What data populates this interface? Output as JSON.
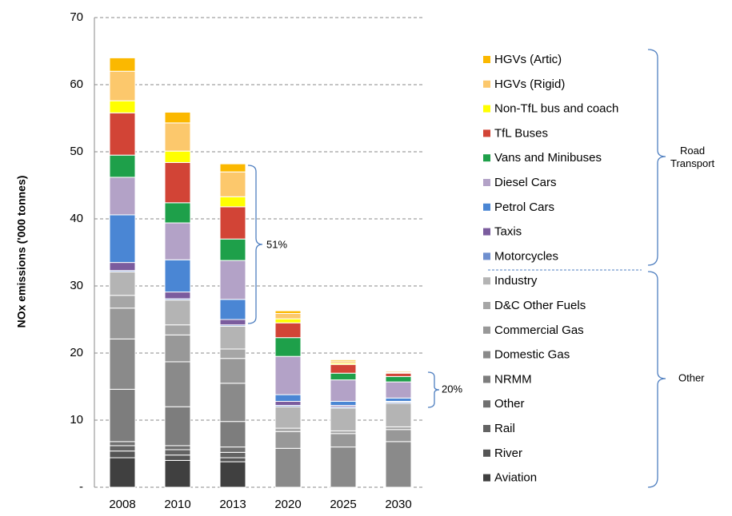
{
  "chart_data": {
    "type": "stacked_bar",
    "y_label": "NOx emissions ('000 tonnes)",
    "categories": [
      "2008",
      "2010",
      "2013",
      "2020",
      "2025",
      "2030"
    ],
    "ylim": [
      0,
      70
    ],
    "yticks": [
      {
        "value": 0,
        "label": "-"
      },
      10,
      20,
      30,
      40,
      50,
      60,
      70
    ],
    "grid": true,
    "series": [
      {
        "name": "Aviation",
        "color": "#404040",
        "values": [
          4.4,
          4.0,
          3.8,
          0,
          0,
          0
        ]
      },
      {
        "name": "River",
        "color": "#555555",
        "values": [
          1.0,
          0.8,
          0.6,
          0,
          0,
          0
        ]
      },
      {
        "name": "Rail",
        "color": "#636363",
        "values": [
          0.8,
          0.8,
          0.8,
          0,
          0,
          0
        ]
      },
      {
        "name": "Other",
        "color": "#707070",
        "values": [
          0.6,
          0.6,
          0.8,
          0,
          0,
          0
        ]
      },
      {
        "name": "NRMM",
        "color": "#7d7d7d",
        "values": [
          7.8,
          5.8,
          3.8,
          0,
          0,
          0
        ]
      },
      {
        "name": "Domestic Gas",
        "color": "#8a8a8a",
        "values": [
          7.5,
          6.7,
          5.7,
          5.8,
          6.0,
          6.8
        ]
      },
      {
        "name": "Commercial Gas",
        "color": "#989898",
        "values": [
          4.6,
          4.0,
          3.7,
          2.5,
          2.0,
          1.8
        ]
      },
      {
        "name": "D&C Other Fuels",
        "color": "#a6a6a6",
        "values": [
          1.9,
          1.5,
          1.4,
          0.5,
          0.4,
          0.4
        ]
      },
      {
        "name": "Industry",
        "color": "#b4b4b4",
        "values": [
          3.5,
          3.7,
          3.4,
          3.2,
          3.4,
          3.5
        ]
      },
      {
        "name": "Motorcycles",
        "color": "#6f8fcf",
        "values": [
          0.2,
          0.2,
          0.2,
          0.2,
          0.2,
          0.2
        ]
      },
      {
        "name": "Taxis",
        "color": "#7b5c9e",
        "values": [
          1.2,
          1.0,
          0.8,
          0.6,
          0.2,
          0.1
        ]
      },
      {
        "name": "Petrol Cars",
        "color": "#4a86d4",
        "values": [
          7.1,
          4.8,
          3.0,
          1.0,
          0.6,
          0.5
        ]
      },
      {
        "name": "Diesel Cars",
        "color": "#b3a2c7",
        "values": [
          5.6,
          5.5,
          5.8,
          5.7,
          3.2,
          2.4
        ]
      },
      {
        "name": "Vans and Minibuses",
        "color": "#1ea04a",
        "values": [
          3.3,
          3.0,
          3.2,
          2.8,
          1.0,
          0.8
        ]
      },
      {
        "name": "TfL Buses",
        "color": "#d24436",
        "values": [
          6.3,
          6.0,
          4.8,
          2.2,
          1.3,
          0.5
        ]
      },
      {
        "name": "Non-TfL bus and coach",
        "color": "#ffff00",
        "values": [
          1.8,
          1.7,
          1.5,
          0.6,
          0.2,
          0.1
        ]
      },
      {
        "name": "HGVs (Rigid)",
        "color": "#fcc86c",
        "values": [
          4.4,
          4.2,
          3.7,
          0.8,
          0.3,
          0.2
        ]
      },
      {
        "name": "HGVs (Artic)",
        "color": "#fbb800",
        "values": [
          2.0,
          1.6,
          1.2,
          0.4,
          0.2,
          0.1
        ]
      }
    ],
    "annotations": [
      "51%",
      "20%"
    ],
    "group_labels": [
      "Road Transport",
      "Other"
    ]
  }
}
